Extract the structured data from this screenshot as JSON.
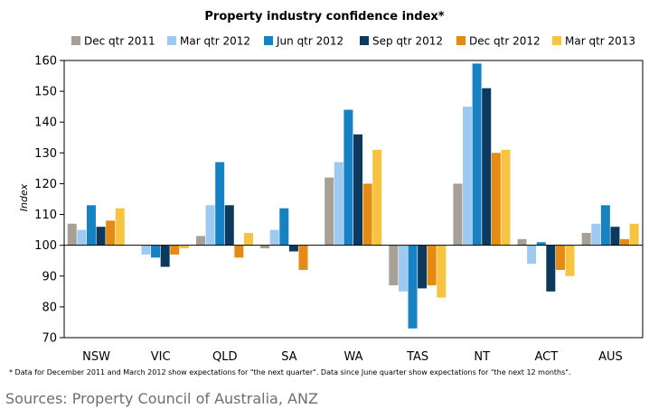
{
  "chart_data": {
    "type": "bar",
    "title": "Property industry confidence index*",
    "xlabel": "",
    "ylabel": "Index",
    "ylim": [
      70,
      160
    ],
    "yticks": [
      70,
      80,
      90,
      100,
      110,
      120,
      130,
      140,
      150,
      160
    ],
    "baseline": 100,
    "grid": false,
    "legend_position": "top",
    "categories": [
      "NSW",
      "VIC",
      "QLD",
      "SA",
      "WA",
      "TAS",
      "NT",
      "ACT",
      "AUS"
    ],
    "series": [
      {
        "name": "Dec qtr 2011",
        "color": "#a89f96",
        "values": [
          107,
          100,
          103,
          99,
          122,
          87,
          120,
          102,
          104
        ]
      },
      {
        "name": "Mar qtr 2012",
        "color": "#9ecaf2",
        "values": [
          105,
          97,
          113,
          105,
          127,
          85,
          145,
          94,
          107
        ]
      },
      {
        "name": "Jun qtr 2012",
        "color": "#1682c4",
        "values": [
          113,
          96,
          127,
          112,
          144,
          73,
          159,
          101,
          113
        ]
      },
      {
        "name": "Sep qtr 2012",
        "color": "#0b3a5e",
        "values": [
          106,
          93,
          113,
          98,
          136,
          86,
          151,
          85,
          106
        ]
      },
      {
        "name": "Dec qtr 2012",
        "color": "#e58a12",
        "values": [
          108,
          97,
          96,
          92,
          120,
          87,
          130,
          92,
          102
        ]
      },
      {
        "name": "Mar qtr 2013",
        "color": "#f6c440",
        "values": [
          112,
          99,
          104,
          100,
          131,
          83,
          131,
          90,
          107
        ]
      }
    ]
  },
  "footnote": "* Data for December 2011 and March 2012 show expectations for \"the next quarter\". Data since June quarter show expectations for \"the next 12 months\".",
  "sources": "Sources: Property Council of Australia, ANZ"
}
